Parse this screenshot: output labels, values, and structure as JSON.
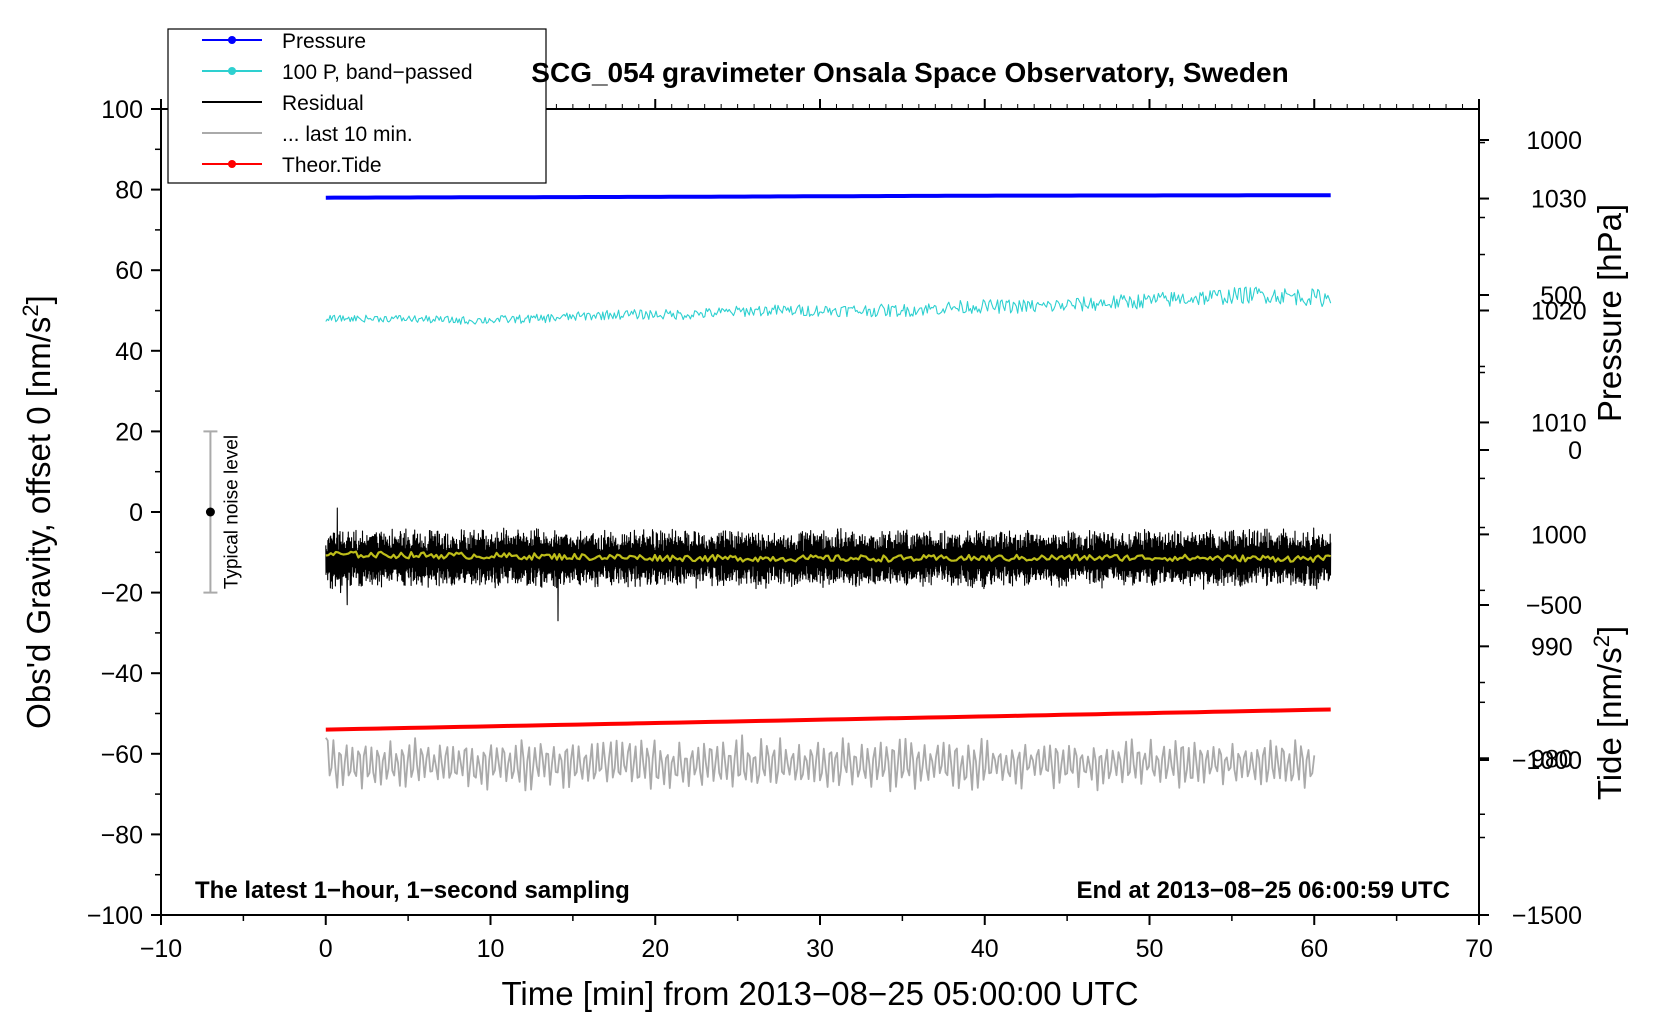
{
  "chart_data": {
    "type": "line",
    "title": "SCG_054 gravimeter Onsala Space Observatory, Sweden",
    "xlabel": "Time [min] from 2013−08−25 05:00:00 UTC",
    "ylabel": "Obs'd Gravity, offset 0 [nm/s",
    "ylabel_sup": "2",
    "ylabel_end": "]",
    "xlim": [
      -10,
      70
    ],
    "ylim": [
      -100,
      100
    ],
    "x_ticks": [
      -10,
      0,
      10,
      20,
      30,
      40,
      50,
      60,
      70
    ],
    "x_tick_labels": [
      "−10",
      "0",
      "10",
      "20",
      "30",
      "40",
      "50",
      "60",
      "70"
    ],
    "y_ticks": [
      -100,
      -80,
      -60,
      -40,
      -20,
      0,
      20,
      40,
      60,
      80,
      100
    ],
    "y_tick_labels": [
      "−100",
      "−80",
      "−60",
      "−40",
      "−20",
      "0",
      "20",
      "40",
      "60",
      "80",
      "100"
    ],
    "pressure_axis": {
      "label": "Pressure [hPa]",
      "ticks": [
        980,
        990,
        1000,
        1010,
        1020,
        1030
      ],
      "tick_labels": [
        "980",
        "990",
        "1000",
        "1010",
        "1020",
        "1030"
      ],
      "range": [
        966,
        1038
      ]
    },
    "tide_axis": {
      "label": "Tide [nm/s",
      "label_sup": "2",
      "label_end": "]",
      "ticks": [
        -1500,
        -1000,
        -500,
        0,
        500,
        1000
      ],
      "tick_labels": [
        "−1500",
        "−1000",
        "−500",
        "0",
        "500",
        "1000"
      ],
      "range": [
        -1500,
        1100
      ]
    },
    "annotations": {
      "bottom_left": "The latest 1−hour, 1−second sampling",
      "bottom_right": "End at 2013−08−25 06:00:59 UTC",
      "noise_label": "Typical noise level",
      "noise_center": 0,
      "noise_range": [
        -20,
        20
      ],
      "noise_x": -7
    },
    "legend": [
      {
        "label": "Pressure",
        "color": "#0000ff",
        "marker": true
      },
      {
        "label": "100 P, band−passed",
        "color": "#2ed0d0",
        "marker": true
      },
      {
        "label": "Residual",
        "color": "#000000",
        "marker": false
      },
      {
        "label": "... last 10 min.",
        "color": "#aaaaaa",
        "marker": false
      },
      {
        "label": "Theor.Tide",
        "color": "#ff0000",
        "marker": true
      }
    ],
    "series": [
      {
        "name": "Pressure",
        "color": "#0000ff",
        "x_range": [
          0,
          61
        ],
        "values": [
          78.0,
          78.2,
          78.5,
          78.6
        ]
      },
      {
        "name": "100 P, band-passed",
        "color": "#2ed0d0",
        "x_range": [
          0,
          61
        ],
        "values": [
          48,
          48,
          47.5,
          48,
          49,
          49,
          50,
          50,
          50,
          51,
          51,
          52,
          53,
          54,
          53
        ]
      },
      {
        "name": "Residual",
        "color": "#000000",
        "x_range": [
          0,
          61
        ],
        "mean": -11.5,
        "amplitude": 7,
        "spikes": [
          [
            0.4,
            -19
          ],
          [
            0.7,
            1
          ],
          [
            0.9,
            -20
          ],
          [
            1.3,
            -23
          ],
          [
            14.1,
            6
          ],
          [
            14.1,
            -27
          ]
        ]
      },
      {
        "name": "Residual smoothed",
        "color": "#bdbd1a",
        "x_range": [
          0,
          61
        ],
        "values": [
          -10.5,
          -11,
          -11.5,
          -11.5,
          -11.3,
          -11.6
        ]
      },
      {
        "name": "... last 10 min.",
        "color": "#aaaaaa",
        "x_range": [
          0,
          60
        ],
        "mean": -62.5,
        "amplitude": 5.5
      },
      {
        "name": "Theor.Tide",
        "color": "#ff0000",
        "x_range": [
          0,
          61
        ],
        "values": [
          -54,
          -49
        ]
      }
    ]
  }
}
